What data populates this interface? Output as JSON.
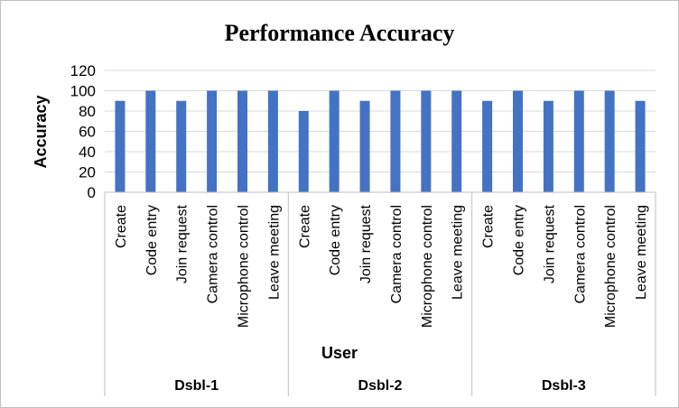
{
  "chart_data": {
    "type": "bar",
    "title": "Performance Accuracy",
    "ylabel": "Accuracy",
    "xlabel": "User",
    "ylim": [
      0,
      120
    ],
    "yticks": [
      0,
      20,
      40,
      60,
      80,
      100,
      120
    ],
    "grid": true,
    "legend": "none",
    "bar_color": "#4472C4",
    "groups": [
      {
        "name": "Dsbl-1",
        "categories": [
          "Create",
          "Code entry",
          "Join request",
          "Camera control",
          "Microphone control",
          "Leave meeting"
        ],
        "values": [
          90,
          100,
          90,
          100,
          100,
          100
        ]
      },
      {
        "name": "Dsbl-2",
        "categories": [
          "Create",
          "Code entry",
          "Join request",
          "Camera control",
          "Microphone control",
          "Leave meeting"
        ],
        "values": [
          80,
          100,
          90,
          100,
          100,
          100
        ]
      },
      {
        "name": "Dsbl-3",
        "categories": [
          "Create",
          "Code entry",
          "Join request",
          "Camera control",
          "Microphone control",
          "Leave meeting"
        ],
        "values": [
          90,
          100,
          90,
          100,
          100,
          90
        ]
      }
    ]
  }
}
